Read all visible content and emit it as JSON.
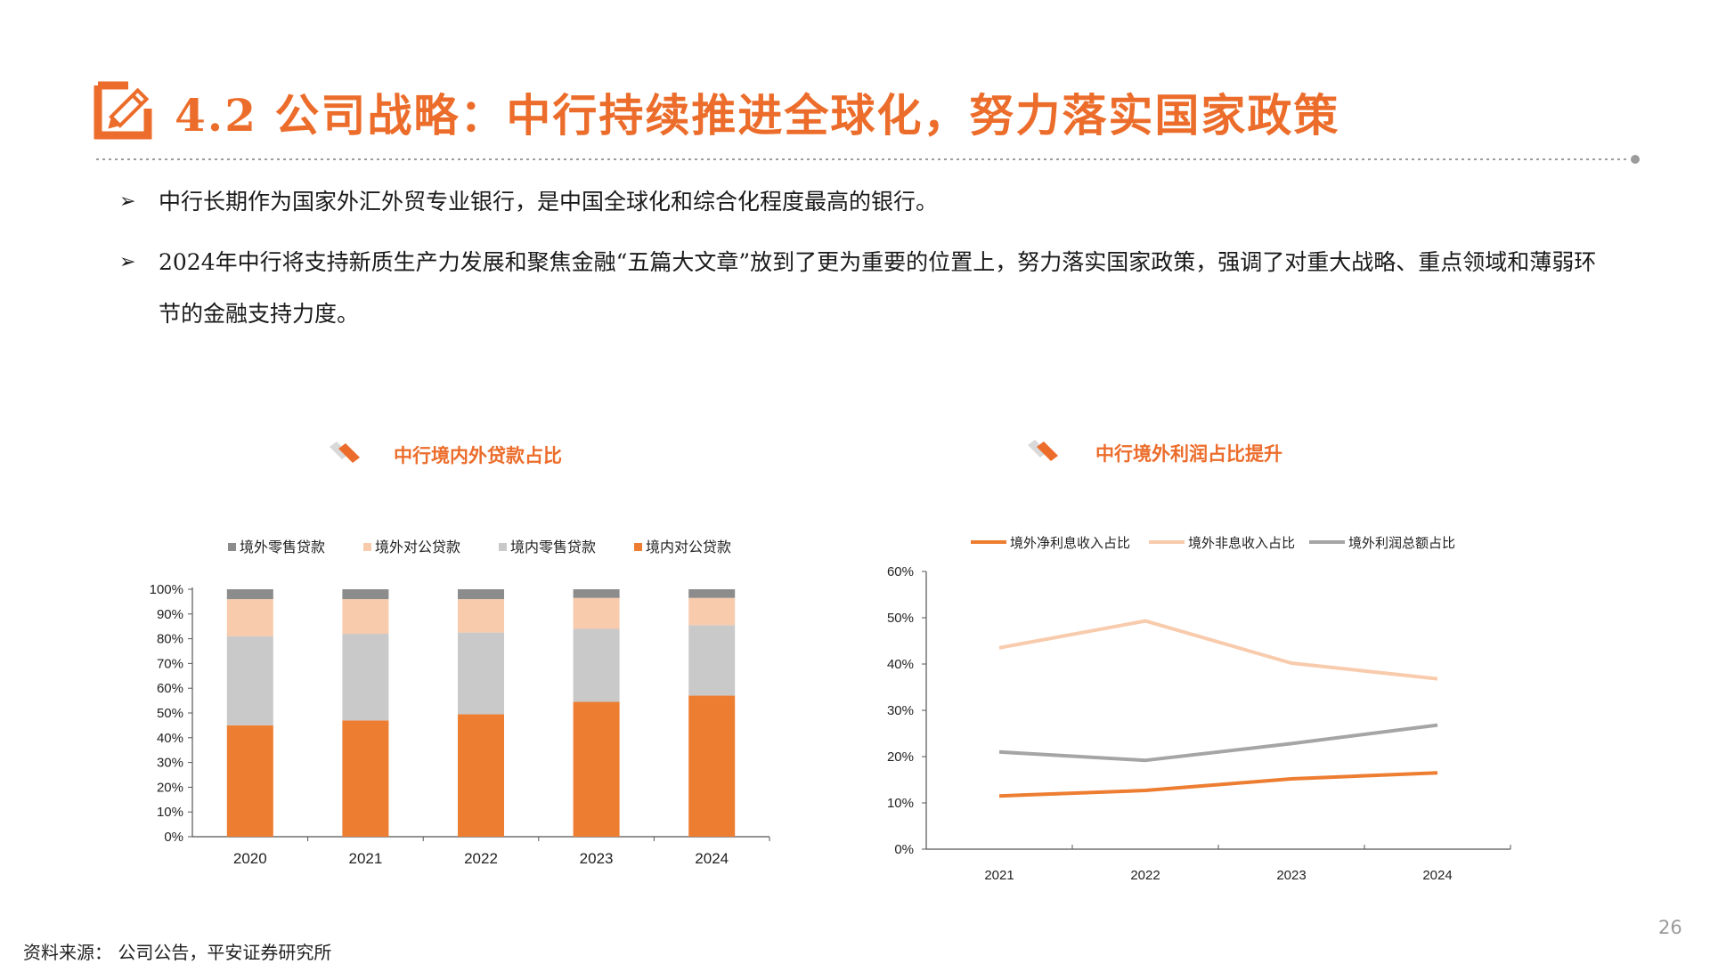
{
  "header": {
    "title": "4.2 公司战略：中行持续推进全球化，努力落实国家政策",
    "accent_color": "#ec6d2b"
  },
  "bullets": [
    {
      "marker": "➢",
      "text": "中行长期作为国家外汇外贸专业银行，是中国全球化和综合化程度最高的银行。"
    },
    {
      "marker": "➢",
      "text": "2024年中行将支持新质生产力发展和聚焦金融“五篇大文章”放到了更为重要的位置上，努力落实国家政策，强调了对重大战略、重点领域和薄弱环节的金融支持力度。"
    }
  ],
  "chart_data": [
    {
      "type": "bar",
      "stacked": true,
      "title": "中行境内外贷款占比",
      "categories": [
        "2020",
        "2021",
        "2022",
        "2023",
        "2024"
      ],
      "ylim": [
        0,
        1
      ],
      "y_ticks": [
        "0%",
        "10%",
        "20%",
        "30%",
        "40%",
        "50%",
        "60%",
        "70%",
        "80%",
        "90%",
        "100%"
      ],
      "legend_position": "top",
      "legend_order": [
        "境外零售贷款",
        "境外对公贷款",
        "境内零售贷款",
        "境内对公贷款"
      ],
      "series": [
        {
          "name": "境内对公贷款",
          "color": "#ed7d31",
          "values": [
            0.45,
            0.47,
            0.495,
            0.545,
            0.57
          ]
        },
        {
          "name": "境内零售贷款",
          "color": "#c9c9c9",
          "values": [
            0.36,
            0.35,
            0.33,
            0.295,
            0.285
          ]
        },
        {
          "name": "境外对公贷款",
          "color": "#f8cbad",
          "values": [
            0.15,
            0.14,
            0.135,
            0.125,
            0.11
          ]
        },
        {
          "name": "境外零售贷款",
          "color": "#8c8c8c",
          "values": [
            0.04,
            0.04,
            0.04,
            0.035,
            0.035
          ]
        }
      ]
    },
    {
      "type": "line",
      "title": "中行境外利润占比提升",
      "categories": [
        "2021",
        "2022",
        "2023",
        "2024"
      ],
      "ylim": [
        0,
        0.6
      ],
      "y_ticks": [
        "0%",
        "10%",
        "20%",
        "30%",
        "40%",
        "50%",
        "60%"
      ],
      "legend_position": "top",
      "series": [
        {
          "name": "境外净利息收入占比",
          "color": "#ed7d31",
          "values": [
            0.115,
            0.127,
            0.152,
            0.165
          ]
        },
        {
          "name": "境外非息收入占比",
          "color": "#f8cbad",
          "values": [
            0.435,
            0.493,
            0.402,
            0.368
          ]
        },
        {
          "name": "境外利润总额占比",
          "color": "#a5a5a5",
          "values": [
            0.21,
            0.192,
            0.228,
            0.268
          ]
        }
      ]
    }
  ],
  "footer": {
    "source": "资料来源： 公司公告，平安证券研究所",
    "page_number": "26"
  }
}
